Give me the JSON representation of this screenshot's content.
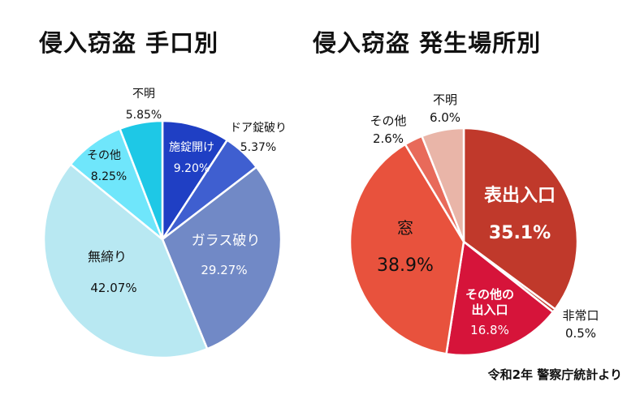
{
  "source": "令和2年 警察庁統計より",
  "chart_data": [
    {
      "type": "pie",
      "title": "侵入窃盗 手口別",
      "start": "12 o'clock, clockwise",
      "slices": [
        {
          "name": "施錠開け",
          "value": 9.2,
          "label": "9.20%",
          "color": "#1f3fc4",
          "label_color": "#ffffff"
        },
        {
          "name": "ドア錠破り",
          "value": 5.37,
          "label": "5.37%",
          "color": "#3f5fd0",
          "label_color": "#111111"
        },
        {
          "name": "ガラス破り",
          "value": 29.27,
          "label": "29.27%",
          "color": "#7189c6",
          "label_color": "#ffffff"
        },
        {
          "name": "無締り",
          "value": 42.07,
          "label": "42.07%",
          "color": "#b8e8f2",
          "label_color": "#111111"
        },
        {
          "name": "その他",
          "value": 8.25,
          "label": "8.25%",
          "color": "#6fe6fb",
          "label_color": "#111111"
        },
        {
          "name": "不明",
          "value": 5.85,
          "label": "5.85%",
          "color": "#1ec8e6",
          "label_color": "#111111"
        }
      ]
    },
    {
      "type": "pie",
      "title": "侵入窃盗 発生場所別",
      "start": "12 o'clock, clockwise",
      "slices": [
        {
          "name": "表出入口",
          "value": 35.1,
          "label": "35.1%",
          "color": "#c0392b",
          "label_color": "#ffffff"
        },
        {
          "name": "非常口",
          "value": 0.5,
          "label": "0.5%",
          "color": "#c23a2e",
          "label_color": "#111111"
        },
        {
          "name": "その他の出入口",
          "value": 16.8,
          "label": "16.8%",
          "color": "#d6143a",
          "label_color": "#ffffff"
        },
        {
          "name": "窓",
          "value": 38.9,
          "label": "38.9%",
          "color": "#e8523d",
          "label_color": "#111111"
        },
        {
          "name": "その他",
          "value": 2.6,
          "label": "2.6%",
          "color": "#e86a5a",
          "label_color": "#111111"
        },
        {
          "name": "不明",
          "value": 6.0,
          "label": "6.0%",
          "color": "#e9b5a8",
          "label_color": "#111111"
        }
      ]
    }
  ]
}
